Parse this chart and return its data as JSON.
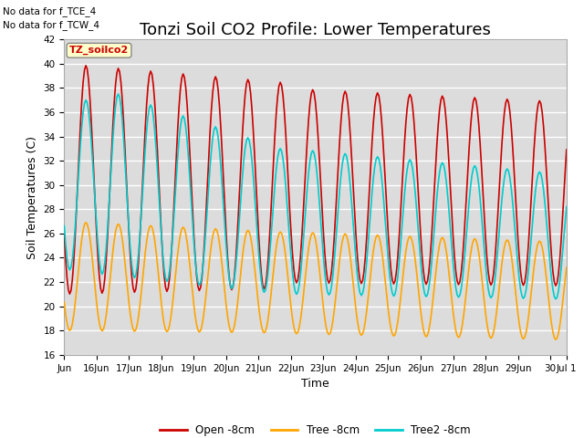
{
  "title": "Tonzi Soil CO2 Profile: Lower Temperatures",
  "ylabel": "Soil Temperatures (C)",
  "xlabel": "Time",
  "ylim": [
    16,
    42
  ],
  "xlim": [
    0,
    15.5
  ],
  "annotations": [
    "No data for f_TCE_4",
    "No data for f_TCW_4"
  ],
  "box_label": "TZ_soilco2",
  "xtick_labels": [
    "Jun",
    "16Jun",
    "17Jun",
    "18Jun",
    "19Jun",
    "20Jun",
    "21Jun",
    "22Jun",
    "23Jun",
    "24Jun",
    "25Jun",
    "26Jun",
    "27Jun",
    "28Jun",
    "29Jun",
    "30",
    "Jul 1"
  ],
  "line_colors": {
    "open": "#cc0000",
    "tree": "#ffa500",
    "tree2": "#00cccc"
  },
  "legend_labels": [
    "Open -8cm",
    "Tree -8cm",
    "Tree2 -8cm"
  ],
  "bg_color": "#dcdcdc",
  "grid_color": "#ffffff",
  "fig_color": "#ffffff",
  "title_fontsize": 13,
  "label_fontsize": 9,
  "tick_fontsize": 7.5
}
